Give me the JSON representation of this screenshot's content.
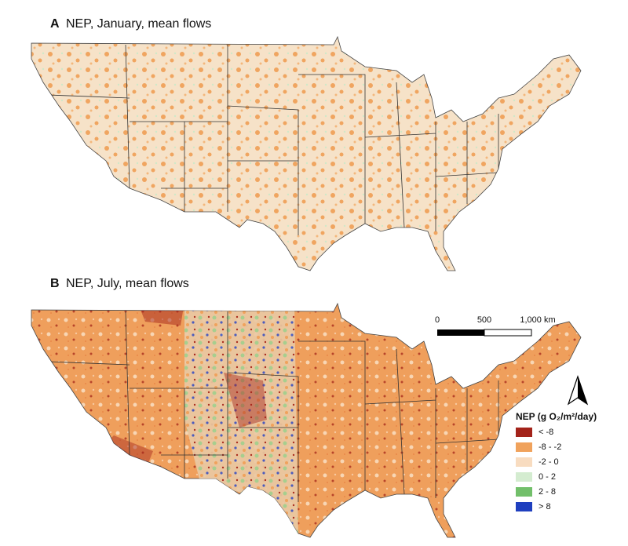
{
  "panels": [
    {
      "label": "A",
      "title": "NEP, January, mean flows"
    },
    {
      "label": "B",
      "title": "NEP, July, mean flows"
    }
  ],
  "scale_bar": {
    "labels": [
      "0",
      "500",
      "1,000 km"
    ]
  },
  "legend": {
    "title": "NEP (g O₂/m²/day)",
    "items": [
      {
        "label": "< -8",
        "color": "#a3231a"
      },
      {
        "label": "-8 - -2",
        "color": "#f0a25c"
      },
      {
        "label": "-2 - 0",
        "color": "#f8dcc0"
      },
      {
        "label": "0 - 2",
        "color": "#d4ecd0"
      },
      {
        "label": "2 - 8",
        "color": "#72bf6a"
      },
      {
        "label": "> 8",
        "color": "#1f3fbf"
      }
    ]
  }
}
